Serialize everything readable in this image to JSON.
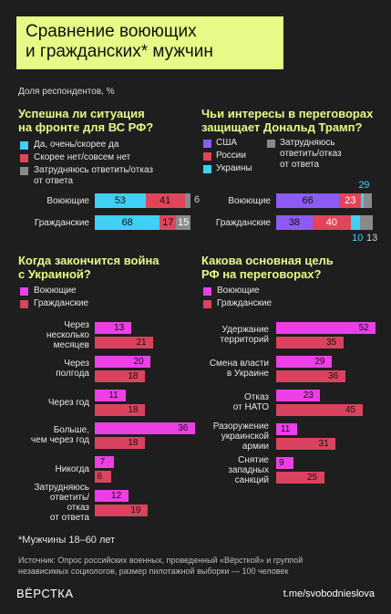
{
  "header": {
    "title_line1": "Сравнение воюющих",
    "title_line2": "и гражданских* мужчин",
    "units": "Доля респондентов, %"
  },
  "colors": {
    "accent": "#e7f986",
    "cyan": "#3fd0f5",
    "red": "#e0455a",
    "gray": "#8a8a8a",
    "purple": "#8c5cf5",
    "magenta": "#ec3fe6",
    "rose": "#d9435f"
  },
  "chart_data": [
    {
      "type": "bar",
      "stacked": true,
      "title": "Успешна ли ситуация на фронте для ВС РФ?",
      "title_lines": [
        "Успешна ли ситуация",
        "на фронте для ВС РФ?"
      ],
      "categories": [
        "Воюющие",
        "Гражданские"
      ],
      "series": [
        {
          "name": "Да, очень/скорее да",
          "values": [
            53,
            68
          ]
        },
        {
          "name": "Скорее нет/совсем нет",
          "values": [
            41,
            17
          ]
        },
        {
          "name": "Затрудняюсь ответить/отказ от ответа",
          "values": [
            6,
            15
          ]
        }
      ],
      "legend_lines": [
        [
          "Да, очень/скорее да"
        ],
        [
          "Скорее нет/совсем нет"
        ],
        [
          "Затрудняюсь ответить/отказ",
          "от ответа"
        ]
      ]
    },
    {
      "type": "bar",
      "stacked": true,
      "title": "Чьи интересы в переговорах защищает Дональд Трамп?",
      "title_lines": [
        "Чьи интересы в переговорах",
        "защищает Дональд Трамп?"
      ],
      "categories": [
        "Воюющие",
        "Гражданские"
      ],
      "series": [
        {
          "name": "США",
          "values": [
            66,
            38
          ]
        },
        {
          "name": "России",
          "values": [
            23,
            40
          ]
        },
        {
          "name": "Украины",
          "values": [
            2,
            10
          ]
        },
        {
          "name": "Затрудняюсь ответить/отказ от ответа",
          "values": [
            9,
            13
          ]
        }
      ],
      "legend_lines": [
        [
          "США"
        ],
        [
          "России"
        ],
        [
          "Украины"
        ],
        [
          "Затрудняюсь",
          "ответить/отказ",
          "от ответа"
        ]
      ]
    },
    {
      "type": "bar",
      "orientation": "horizontal",
      "title": "Когда закончится война с Украиной?",
      "title_lines": [
        "Когда закончится война",
        "с Украиной?"
      ],
      "legend": [
        "Воюющие",
        "Гражданские"
      ],
      "categories": [
        {
          "label": [
            "Через",
            "несколько",
            "месяцев"
          ],
          "values": [
            13,
            21
          ]
        },
        {
          "label": [
            "Через",
            "полгода"
          ],
          "values": [
            20,
            18
          ]
        },
        {
          "label": [
            "Через год"
          ],
          "values": [
            11,
            18
          ]
        },
        {
          "label": [
            "Больше,",
            "чем через год"
          ],
          "values": [
            36,
            18
          ]
        },
        {
          "label": [
            "Никогда"
          ],
          "values": [
            7,
            6
          ]
        },
        {
          "label": [
            "Затрудняюсь",
            "ответить/",
            "отказ",
            "от ответа"
          ],
          "values": [
            12,
            19
          ]
        }
      ]
    },
    {
      "type": "bar",
      "orientation": "horizontal",
      "title": "Какова основная цель РФ на переговорах?",
      "title_lines": [
        "Какова основная цель",
        "РФ на переговорах?"
      ],
      "legend": [
        "Воюющие",
        "Гражданские"
      ],
      "categories": [
        {
          "label": [
            "Удержание",
            "территорий"
          ],
          "values": [
            52,
            35
          ]
        },
        {
          "label": [
            "Смена власти",
            "в Украине"
          ],
          "values": [
            29,
            36
          ]
        },
        {
          "label": [
            "Отказ",
            "от НАТО"
          ],
          "values": [
            23,
            45
          ]
        },
        {
          "label": [
            "Разоружение",
            "украинской",
            "армии"
          ],
          "values": [
            11,
            31
          ]
        },
        {
          "label": [
            "Снятие",
            "западных",
            "санкций"
          ],
          "values": [
            9,
            25
          ]
        }
      ]
    }
  ],
  "footer": {
    "note": "*Мужчины 18–60 лет",
    "source_line1": "Источник: Опрос российских военных, проведенный «Вёрсткой» и группой",
    "source_line2": "независимых социологов, размер пилотажной выборки — 100 человек",
    "logo": "ВЁРСТКА",
    "link": "t.me/svobodnieslova"
  }
}
